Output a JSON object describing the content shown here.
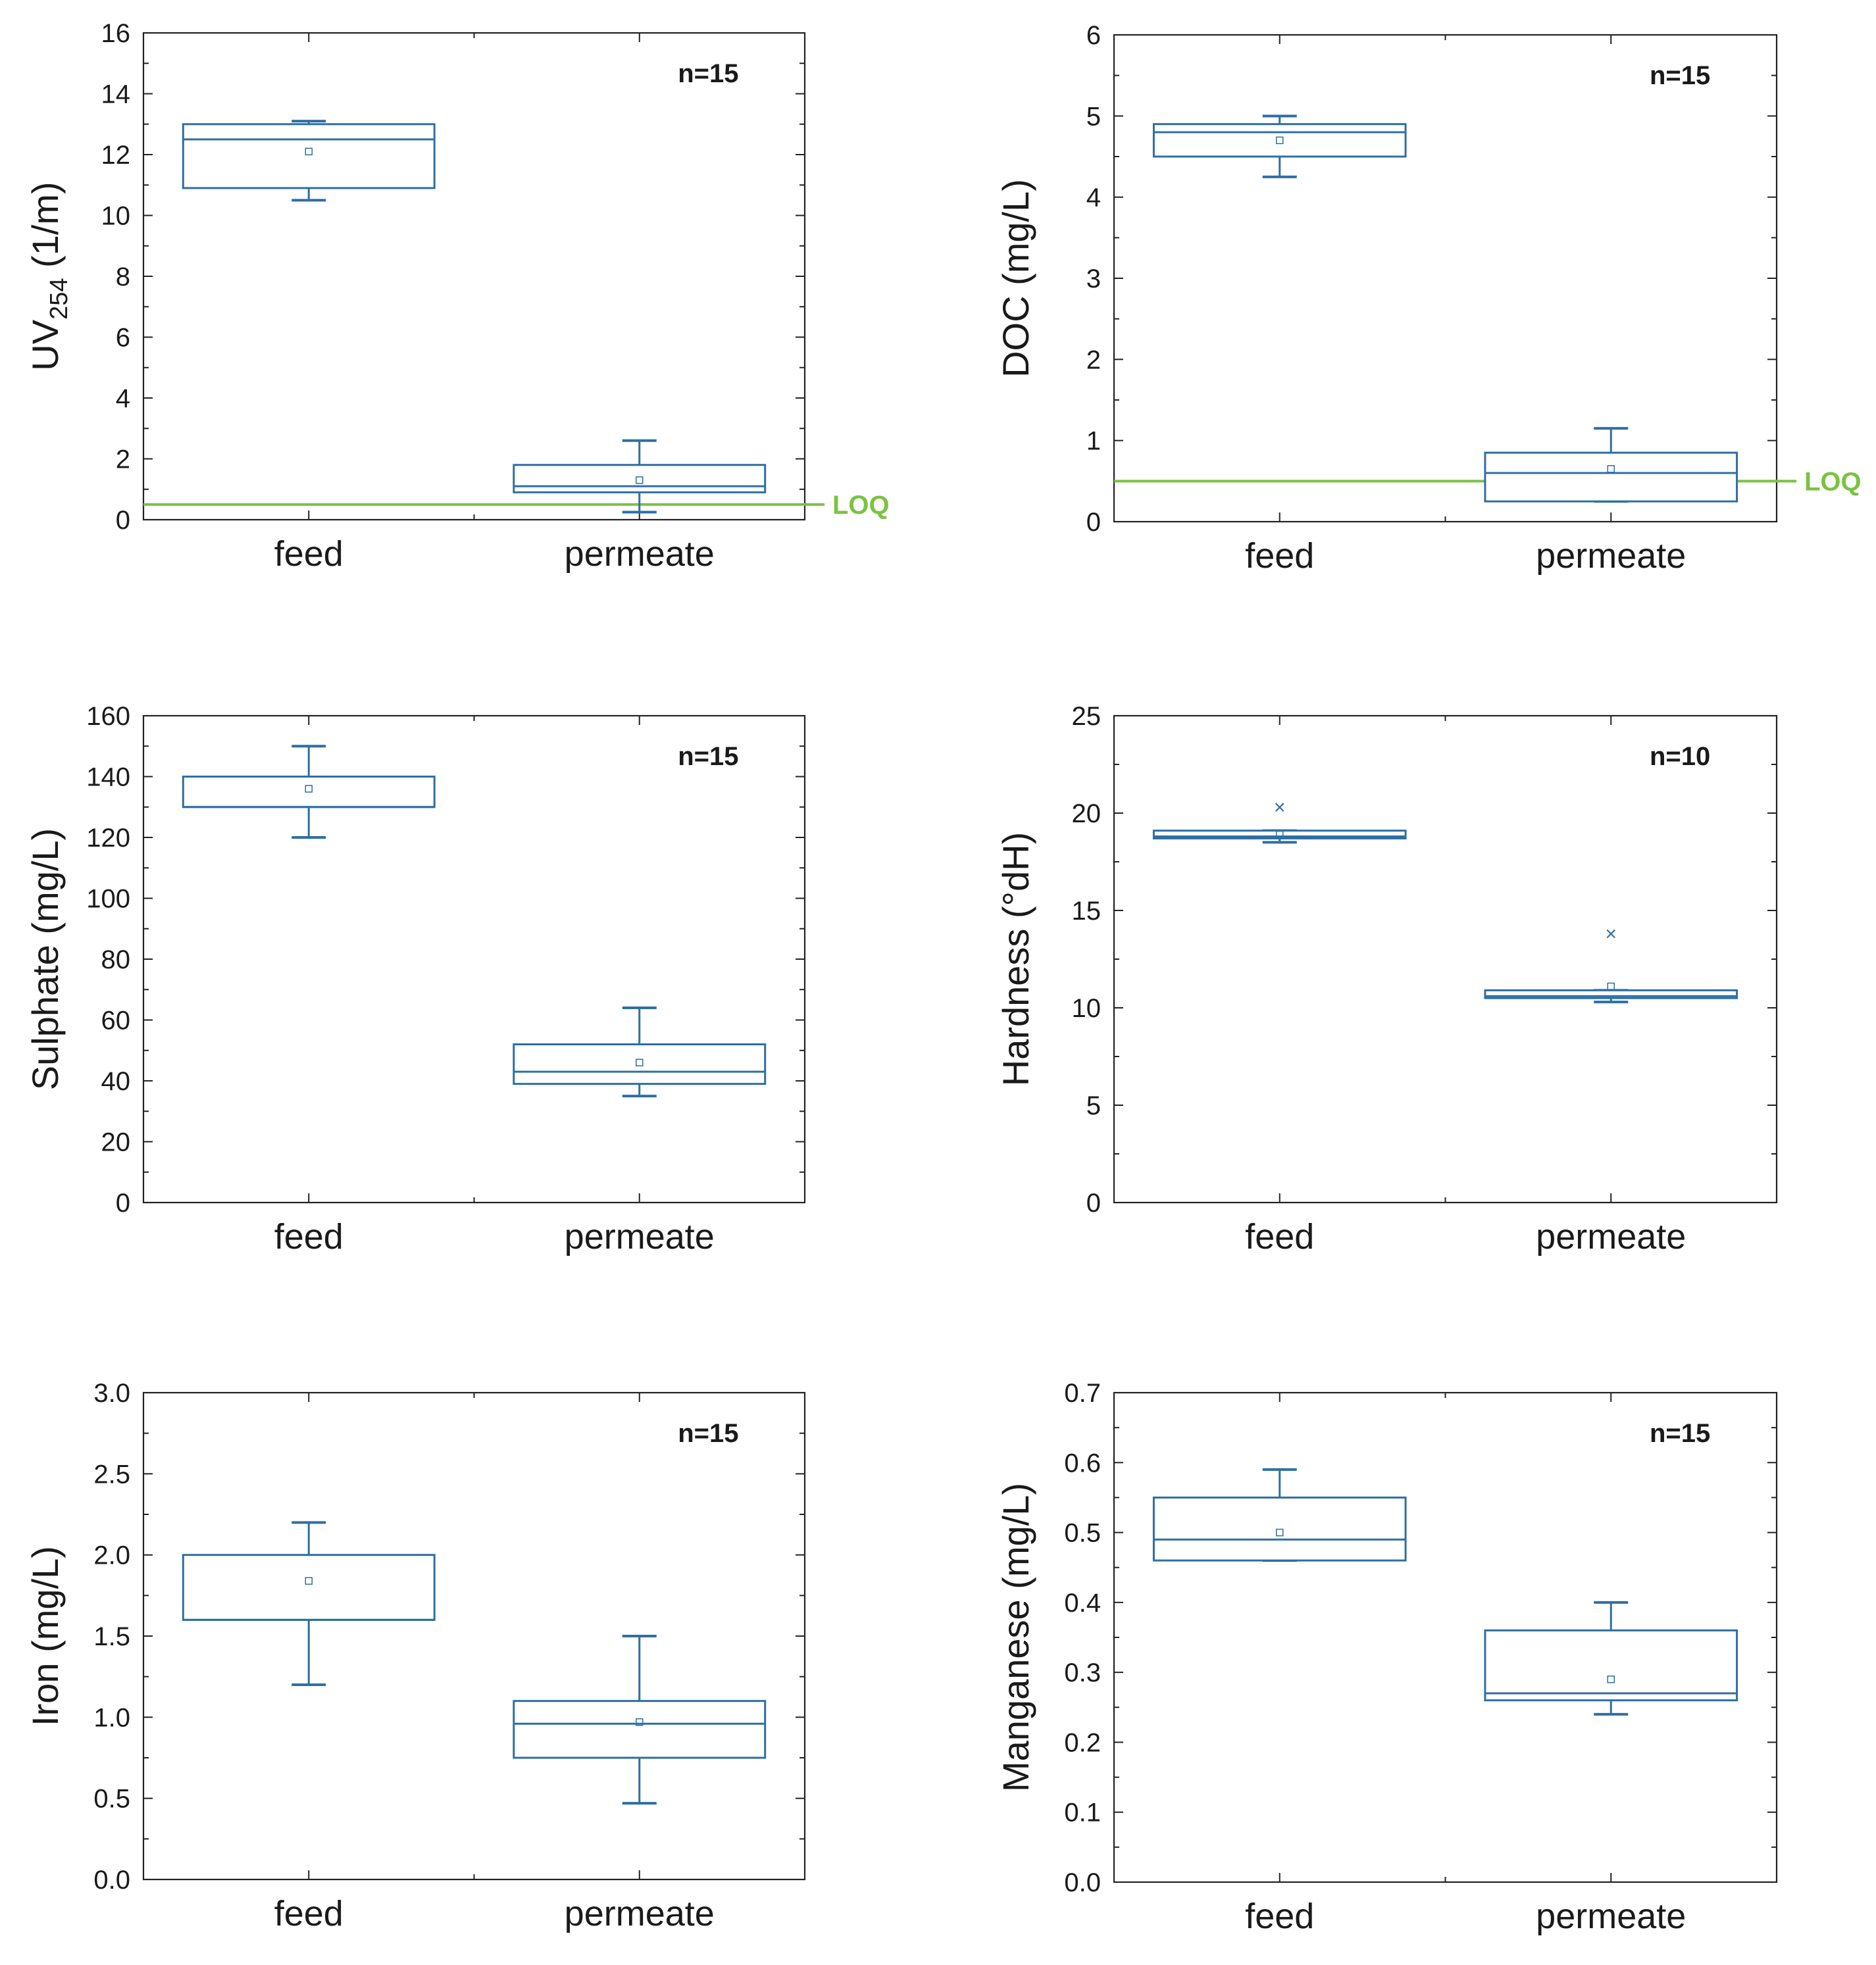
{
  "colors": {
    "box": "#2e6fa3",
    "loq": "#7cc242",
    "axis": "#222222",
    "text": "#1a1a1a"
  },
  "chart_data": [
    {
      "type": "box",
      "ylabel": "UV",
      "ylabel_sub": "254",
      "ylabel_tail": " (1/m)",
      "ylim": [
        0,
        16
      ],
      "ticks": [
        "0",
        "2",
        "4",
        "6",
        "8",
        "10",
        "12",
        "14",
        "16"
      ],
      "categories": [
        "feed",
        "permeate"
      ],
      "n_label": "n=15",
      "loq": {
        "value": 0.5,
        "label": "LOQ"
      },
      "boxes": [
        {
          "whisker_low": 10.5,
          "q1": 10.9,
          "median": 12.5,
          "q3": 13.0,
          "whisker_high": 13.1,
          "mean": 12.1,
          "outliers": []
        },
        {
          "whisker_low": 0.25,
          "q1": 0.9,
          "median": 1.1,
          "q3": 1.8,
          "whisker_high": 2.6,
          "mean": 1.3,
          "outliers": []
        }
      ]
    },
    {
      "type": "box",
      "ylabel": "DOC (mg/L)",
      "ylabel_sub": "",
      "ylabel_tail": "",
      "ylim": [
        0,
        6
      ],
      "ticks": [
        "0",
        "1",
        "2",
        "3",
        "4",
        "5",
        "6"
      ],
      "categories": [
        "feed",
        "permeate"
      ],
      "n_label": "n=15",
      "loq": {
        "value": 0.5,
        "label": "LOQ"
      },
      "boxes": [
        {
          "whisker_low": 4.25,
          "q1": 4.5,
          "median": 4.8,
          "q3": 4.9,
          "whisker_high": 5.0,
          "mean": 4.7,
          "outliers": []
        },
        {
          "whisker_low": 0.25,
          "q1": 0.25,
          "median": 0.6,
          "q3": 0.85,
          "whisker_high": 1.15,
          "mean": 0.65,
          "outliers": []
        }
      ]
    },
    {
      "type": "box",
      "ylabel": "Sulphate (mg/L)",
      "ylabel_sub": "",
      "ylabel_tail": "",
      "ylim": [
        0,
        160
      ],
      "ticks": [
        "0",
        "20",
        "40",
        "60",
        "80",
        "100",
        "120",
        "140",
        "160"
      ],
      "categories": [
        "feed",
        "permeate"
      ],
      "n_label": "n=15",
      "loq": null,
      "boxes": [
        {
          "whisker_low": 120,
          "q1": 130,
          "median": 130,
          "q3": 140,
          "whisker_high": 150,
          "mean": 136,
          "outliers": []
        },
        {
          "whisker_low": 35,
          "q1": 39,
          "median": 43,
          "q3": 52,
          "whisker_high": 64,
          "mean": 46,
          "outliers": []
        }
      ]
    },
    {
      "type": "box",
      "ylabel": "Hardness (°dH)",
      "ylabel_sub": "",
      "ylabel_tail": "",
      "ylim": [
        0,
        25
      ],
      "ticks": [
        "0",
        "5",
        "10",
        "15",
        "20",
        "25"
      ],
      "categories": [
        "feed",
        "permeate"
      ],
      "n_label": "n=10",
      "loq": null,
      "boxes": [
        {
          "whisker_low": 18.5,
          "q1": 18.7,
          "median": 18.8,
          "q3": 19.1,
          "whisker_high": 19.1,
          "mean": 18.9,
          "outliers": [
            20.3
          ]
        },
        {
          "whisker_low": 10.3,
          "q1": 10.5,
          "median": 10.6,
          "q3": 10.9,
          "whisker_high": 10.9,
          "mean": 11.1,
          "outliers": [
            13.8
          ]
        }
      ]
    },
    {
      "type": "box",
      "ylabel": "Iron (mg/L)",
      "ylabel_sub": "",
      "ylabel_tail": "",
      "ylim": [
        0,
        3
      ],
      "ticks": [
        "0.0",
        "0.5",
        "1.0",
        "1.5",
        "2.0",
        "2.5",
        "3.0"
      ],
      "categories": [
        "feed",
        "permeate"
      ],
      "n_label": "n=15",
      "loq": null,
      "boxes": [
        {
          "whisker_low": 1.2,
          "q1": 1.6,
          "median": 1.6,
          "q3": 2.0,
          "whisker_high": 2.2,
          "mean": 1.84,
          "outliers": []
        },
        {
          "whisker_low": 0.47,
          "q1": 0.75,
          "median": 0.96,
          "q3": 1.1,
          "whisker_high": 1.5,
          "mean": 0.97,
          "outliers": []
        }
      ]
    },
    {
      "type": "box",
      "ylabel": "Manganese (mg/L)",
      "ylabel_sub": "",
      "ylabel_tail": "",
      "ylim": [
        0,
        0.7
      ],
      "ticks": [
        "0.0",
        "0.1",
        "0.2",
        "0.3",
        "0.4",
        "0.5",
        "0.6",
        "0.7"
      ],
      "categories": [
        "feed",
        "permeate"
      ],
      "n_label": "n=15",
      "loq": null,
      "boxes": [
        {
          "whisker_low": 0.46,
          "q1": 0.46,
          "median": 0.49,
          "q3": 0.55,
          "whisker_high": 0.59,
          "mean": 0.5,
          "outliers": []
        },
        {
          "whisker_low": 0.24,
          "q1": 0.26,
          "median": 0.27,
          "q3": 0.36,
          "whisker_high": 0.4,
          "mean": 0.29,
          "outliers": []
        }
      ]
    }
  ]
}
